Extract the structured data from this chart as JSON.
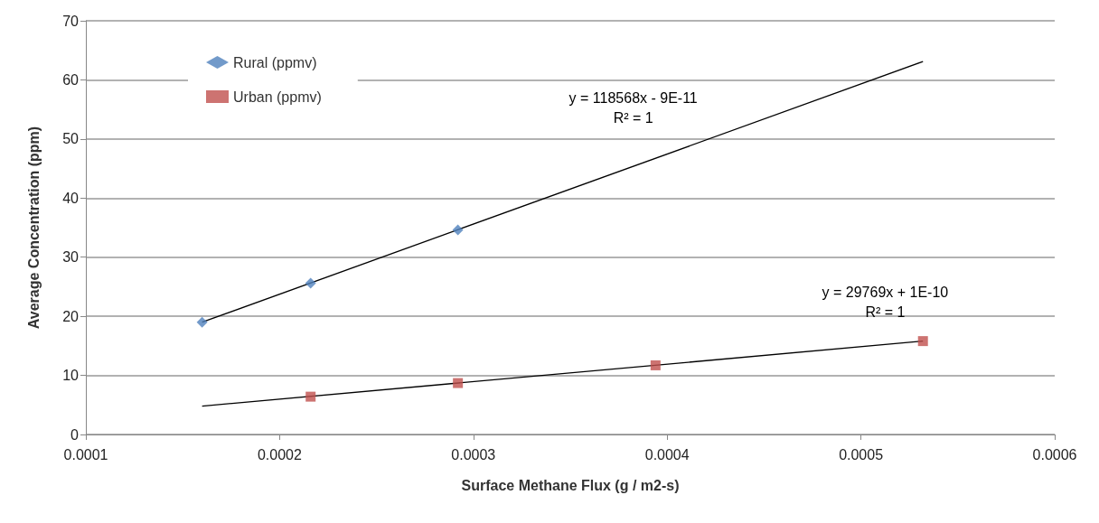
{
  "chart_data": {
    "type": "scatter",
    "xlabel": "Surface Methane Flux (g / m2-s)",
    "ylabel": "Average Concentration (ppm)",
    "xlim": [
      0.0001,
      0.0006
    ],
    "xticks": [
      0.0001,
      0.0002,
      0.0003,
      0.0004,
      0.0005,
      0.0006
    ],
    "ylim": [
      0,
      70
    ],
    "yticks": [
      0,
      10,
      20,
      30,
      40,
      50,
      60,
      70
    ],
    "grid": "y",
    "legend": "top left",
    "series": [
      {
        "name": "Rural (ppmv)",
        "color": "#4f81bd",
        "marker": "diamond",
        "x": [
          0.00016,
          0.000216,
          0.000292
        ],
        "values": [
          19.0,
          25.6,
          34.6
        ]
      },
      {
        "name": "Urban (ppmv)",
        "color": "#c0504d",
        "marker": "square",
        "x": [
          0.000216,
          0.000292,
          0.000394,
          0.000532
        ],
        "values": [
          6.4,
          8.7,
          11.7,
          15.8
        ]
      },
      {
        "type": "line",
        "color": "#000000",
        "marker": "none",
        "x": [
          0.00016,
          0.000532
        ],
        "values": [
          19.0,
          63.1
        ]
      },
      {
        "type": "line",
        "color": "#000000",
        "marker": "none",
        "x": [
          0.00016,
          0.000532
        ],
        "values": [
          4.8,
          15.8
        ]
      }
    ],
    "annotations": [
      "y = 118568x - 9E-11\nR² = 1",
      "y = 29769x + 1E-10\nR² = 1"
    ]
  }
}
